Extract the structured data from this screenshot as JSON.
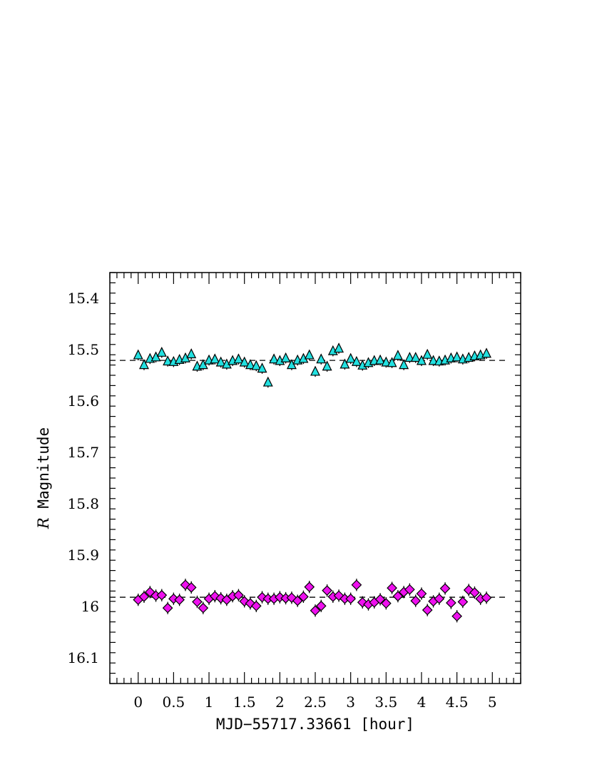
{
  "chart_data": {
    "type": "scatter",
    "title": "",
    "xlabel": "MJD−55717.33661 [hour]",
    "ylabel_italic": "R",
    "ylabel_rest": " Magnitude",
    "xlim": [
      -0.4,
      5.4
    ],
    "ylim": [
      16.15,
      15.35
    ],
    "y_inverted": true,
    "x_ticks": [
      0,
      0.5,
      1,
      1.5,
      2,
      2.5,
      3,
      3.5,
      4,
      4.5,
      5
    ],
    "x_tick_labels": [
      "0",
      "0.5",
      "1",
      "1.5",
      "2",
      "2.5",
      "3",
      "3.5",
      "4",
      "4.5",
      "5"
    ],
    "y_ticks": [
      15.4,
      15.5,
      15.6,
      15.7,
      15.8,
      15.9,
      16.0,
      16.1
    ],
    "y_tick_labels": [
      "15.4",
      "15.5",
      "15.6",
      "15.7",
      "15.8",
      "15.9",
      "16",
      "16.1"
    ],
    "grid": false,
    "series": [
      {
        "marker": "triangle",
        "color": "#22e0e0",
        "mean": 15.521,
        "error": 0.01,
        "x": [
          0.0,
          0.083,
          0.167,
          0.25,
          0.333,
          0.417,
          0.5,
          0.583,
          0.667,
          0.75,
          0.833,
          0.917,
          1.0,
          1.083,
          1.167,
          1.25,
          1.333,
          1.417,
          1.5,
          1.583,
          1.667,
          1.75,
          1.833,
          1.917,
          2.0,
          2.083,
          2.167,
          2.25,
          2.333,
          2.417,
          2.5,
          2.583,
          2.667,
          2.75,
          2.833,
          2.917,
          3.0,
          3.083,
          3.167,
          3.25,
          3.333,
          3.417,
          3.5,
          3.583,
          3.667,
          3.75,
          3.833,
          3.917,
          4.0,
          4.083,
          4.167,
          4.25,
          4.333,
          4.417,
          4.5,
          4.583,
          4.667,
          4.75,
          4.833,
          4.917
        ],
        "y": [
          15.511,
          15.53,
          15.518,
          15.515,
          15.506,
          15.523,
          15.524,
          15.52,
          15.517,
          15.509,
          15.533,
          15.53,
          15.521,
          15.519,
          15.525,
          15.529,
          15.522,
          15.519,
          15.525,
          15.53,
          15.532,
          15.537,
          15.564,
          15.519,
          15.522,
          15.517,
          15.53,
          15.521,
          15.518,
          15.511,
          15.543,
          15.519,
          15.533,
          15.503,
          15.498,
          15.529,
          15.518,
          15.524,
          15.531,
          15.526,
          15.522,
          15.521,
          15.525,
          15.526,
          15.512,
          15.53,
          15.516,
          15.516,
          15.522,
          15.51,
          15.522,
          15.523,
          15.521,
          15.517,
          15.515,
          15.519,
          15.516,
          15.513,
          15.511,
          15.508
        ]
      },
      {
        "marker": "diamond",
        "color": "#ee11ee",
        "mean": 15.982,
        "error": 0.012,
        "x": [
          0.0,
          0.083,
          0.167,
          0.25,
          0.333,
          0.417,
          0.5,
          0.583,
          0.667,
          0.75,
          0.833,
          0.917,
          1.0,
          1.083,
          1.167,
          1.25,
          1.333,
          1.417,
          1.5,
          1.583,
          1.667,
          1.75,
          1.833,
          1.917,
          2.0,
          2.083,
          2.167,
          2.25,
          2.333,
          2.417,
          2.5,
          2.583,
          2.667,
          2.75,
          2.833,
          2.917,
          3.0,
          3.083,
          3.167,
          3.25,
          3.333,
          3.417,
          3.5,
          3.583,
          3.667,
          3.75,
          3.833,
          3.917,
          4.0,
          4.083,
          4.167,
          4.25,
          4.333,
          4.417,
          4.5,
          4.583,
          4.667,
          4.75,
          4.833,
          4.917
        ],
        "y": [
          15.987,
          15.981,
          15.972,
          15.979,
          15.978,
          16.003,
          15.985,
          15.987,
          15.958,
          15.963,
          15.991,
          16.003,
          15.985,
          15.98,
          15.984,
          15.987,
          15.98,
          15.978,
          15.99,
          15.994,
          15.999,
          15.982,
          15.985,
          15.985,
          15.982,
          15.984,
          15.983,
          15.989,
          15.981,
          15.962,
          16.008,
          15.999,
          15.969,
          15.981,
          15.979,
          15.985,
          15.985,
          15.958,
          15.992,
          15.996,
          15.992,
          15.986,
          15.994,
          15.964,
          15.98,
          15.972,
          15.967,
          15.989,
          15.975,
          16.007,
          15.99,
          15.985,
          15.965,
          15.993,
          16.019,
          15.991,
          15.968,
          15.973,
          15.985,
          15.983
        ]
      }
    ]
  }
}
